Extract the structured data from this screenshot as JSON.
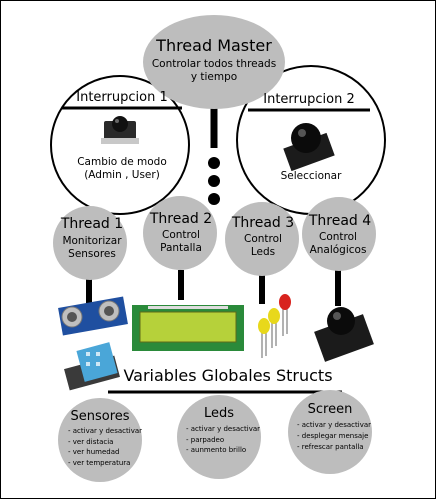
{
  "master": {
    "title": "Thread Master",
    "line1": "Controlar todos threads",
    "line2": "y tiempo"
  },
  "interrupts": [
    {
      "title": "Interrupcion 1",
      "line1": "Cambio de modo",
      "line2": "(Admin , User)",
      "icon": "push-button"
    },
    {
      "title": "Interrupcion 2",
      "line1": "Seleccionar",
      "icon": "joystick"
    }
  ],
  "threads": [
    {
      "title": "Thread 1",
      "line1": "Monitorizar",
      "line2": "Sensores"
    },
    {
      "title": "Thread 2",
      "line1": "Control",
      "line2": "Pantalla"
    },
    {
      "title": "Thread 3",
      "line1": "Control",
      "line2": "Leds"
    },
    {
      "title": "Thread 4",
      "line1": "Control",
      "line2": "Analógicos"
    }
  ],
  "globals": {
    "title": "Variables Globales Structs"
  },
  "structs": [
    {
      "title": "Sensores",
      "items": [
        "- activar y desactivar",
        "- ver distacia",
        "- ver humedad",
        "- ver temperatura"
      ]
    },
    {
      "title": "Leds",
      "items": [
        "- activar y desactivar",
        "- parpadeo",
        "- aunmento brillo"
      ]
    },
    {
      "title": "Screen",
      "items": [
        "- activar y desactivar",
        "- desplegar mensaje",
        "- refrescar pantalla"
      ]
    }
  ],
  "colors": {
    "circle_fill": "#bdbdbd",
    "line": "#000000",
    "lcd_green": "#b6d13a",
    "led_red": "#d8231e",
    "led_yellow": "#e8d81b",
    "sensor_blue": "#1f4fa0",
    "dht_blue": "#4aa6d8"
  }
}
